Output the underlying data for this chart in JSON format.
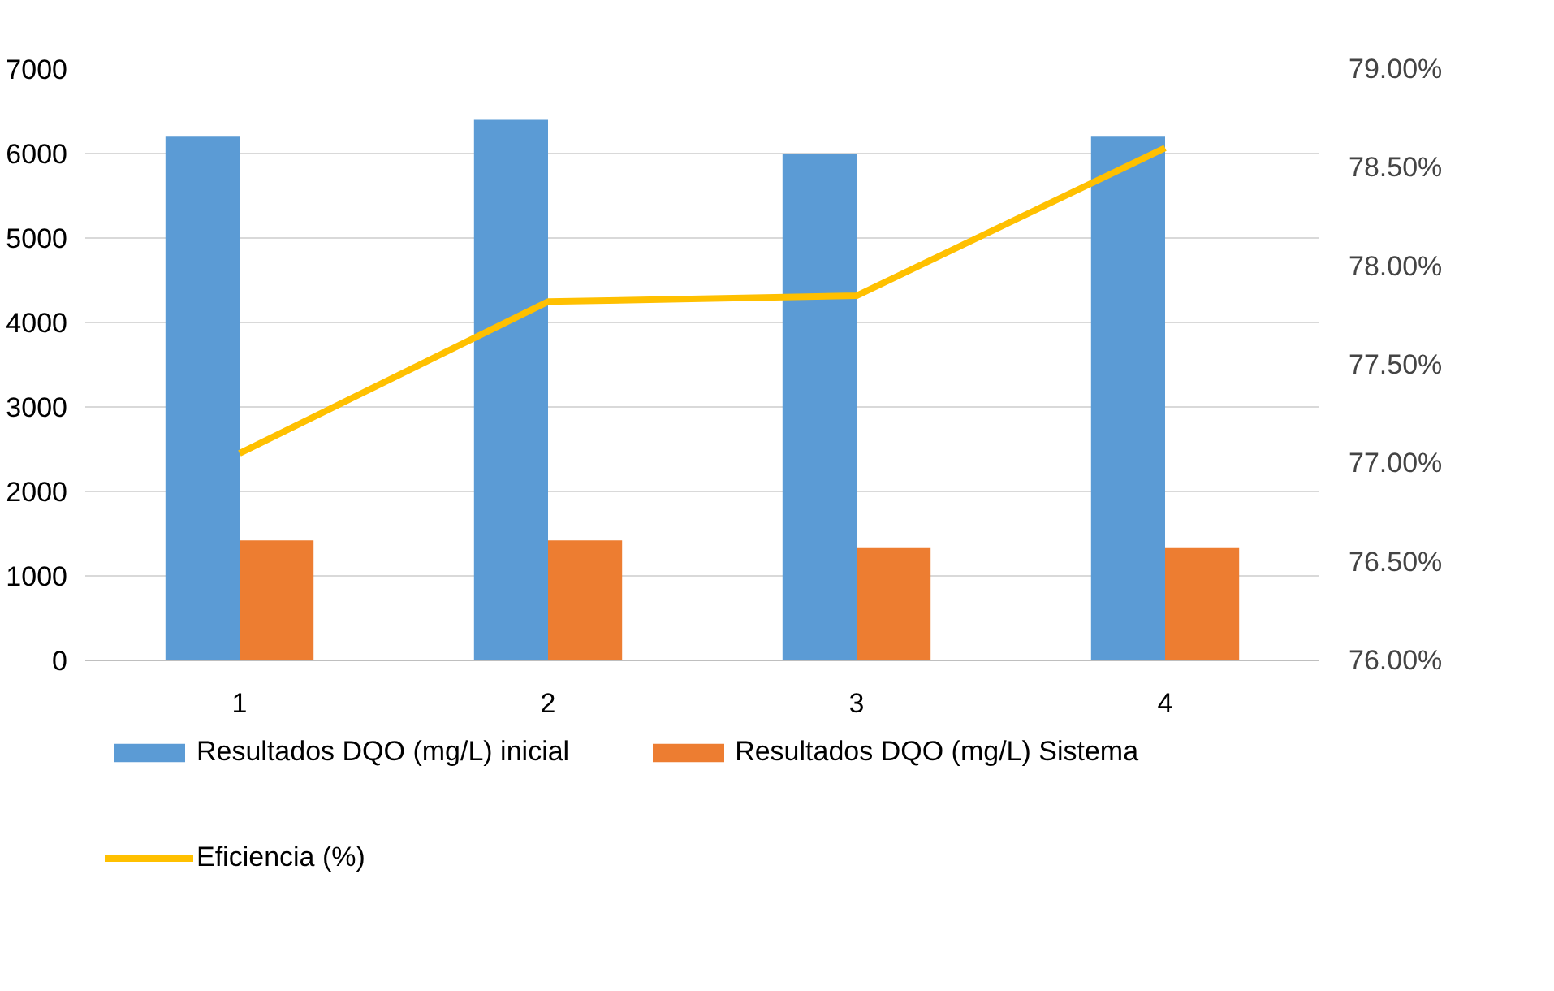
{
  "chart_data": {
    "type": "bar",
    "categories": [
      "1",
      "2",
      "3",
      "4"
    ],
    "series": [
      {
        "name": "Resultados DQO (mg/L) inicial",
        "color": "#5b9bd5",
        "values": [
          6200,
          6400,
          6000,
          6200
        ]
      },
      {
        "name": "Resultados DQO (mg/L) Sistema",
        "color": "#ed7d31",
        "values": [
          1420,
          1420,
          1330,
          1330
        ]
      },
      {
        "name": "Eficiencia (%)",
        "type": "line",
        "axis": "y2",
        "color": "#ffc000",
        "values": [
          77.05,
          77.82,
          77.85,
          78.6
        ]
      }
    ],
    "ylim": [
      0,
      7000
    ],
    "yticks": [
      0,
      1000,
      2000,
      3000,
      4000,
      5000,
      6000,
      7000
    ],
    "y2lim": [
      76,
      79
    ],
    "y2ticks": [
      {
        "value": 76,
        "label": "76.00%"
      },
      {
        "value": 76.5,
        "label": "76.50%"
      },
      {
        "value": 77,
        "label": "77.00%"
      },
      {
        "value": 77.5,
        "label": "77.50%"
      },
      {
        "value": 78,
        "label": "78.00%"
      },
      {
        "value": 78.5,
        "label": "78.50%"
      },
      {
        "value": 79,
        "label": "79.00%"
      }
    ],
    "grid": "y",
    "legend": "bottom"
  }
}
